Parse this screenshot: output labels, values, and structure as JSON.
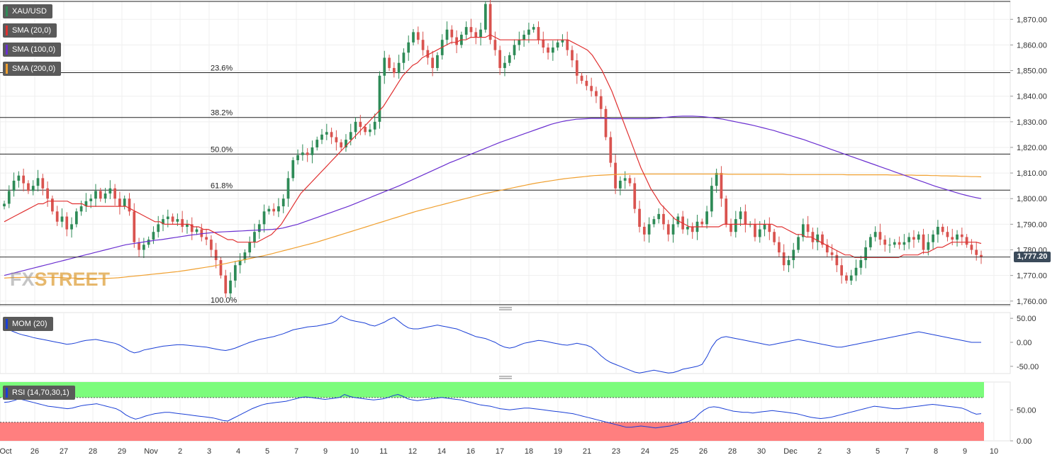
{
  "watermark": {
    "fx": "FX",
    "street": "STREET"
  },
  "legend": {
    "main": [
      {
        "label": "XAU/USD",
        "color": "#2e8b57"
      },
      {
        "label": "SMA (20,0)",
        "color": "#e03030"
      },
      {
        "label": "SMA (100,0)",
        "color": "#6a2fd0"
      },
      {
        "label": "SMA (200,0)",
        "color": "#f0a030"
      }
    ],
    "momentum": {
      "label": "MOM (20)",
      "color": "#1a3fd6"
    },
    "rsi": {
      "label": "RSI (14,70,30,1)",
      "color": "#1a3fd6"
    }
  },
  "last_price": "1,777.20",
  "colors": {
    "up": "#2e8b57",
    "down": "#d9534f",
    "sma20": "#e03030",
    "sma100": "#6a2fd0",
    "sma200": "#f0a030",
    "indicator": "#1a3fd6",
    "overbought": "#7cfc7c",
    "oversold": "#ff7f7f"
  },
  "chart_data": [
    {
      "type": "candlestick",
      "symbol": "XAU/USD",
      "ylim": [
        1758,
        1877
      ],
      "y_ticks": [
        1760,
        1770,
        1780,
        1790,
        1800,
        1810,
        1820,
        1830,
        1840,
        1850,
        1860,
        1870
      ],
      "y_tick_labels": [
        "1,760.00",
        "1,770.00",
        "1,780.00",
        "1,790.00",
        "1,800.00",
        "1,810.00",
        "1,820.00",
        "1,830.00",
        "1,840.00",
        "1,850.00",
        "1,860.00",
        "1,870.00"
      ],
      "x_labels": [
        "Oct",
        "26",
        "27",
        "28",
        "29",
        "Nov",
        "2",
        "3",
        "4",
        "5",
        "7",
        "9",
        "10",
        "11",
        "12",
        "14",
        "16",
        "17",
        "18",
        "19",
        "21",
        "23",
        "24",
        "25",
        "26",
        "28",
        "30",
        "Dec",
        "2",
        "3",
        "5",
        "7",
        "8",
        "9",
        "10"
      ],
      "fibonacci": [
        {
          "label": "",
          "value": 1877
        },
        {
          "label": "23.6%",
          "value": 1849.2
        },
        {
          "label": "38.2%",
          "value": 1831.7
        },
        {
          "label": "50.0%",
          "value": 1817.4
        },
        {
          "label": "61.8%",
          "value": 1803.3
        },
        {
          "label": "100.0%",
          "value": 1758.6
        }
      ],
      "last_price": 1777.2,
      "closes": [
        1798,
        1803,
        1807,
        1809,
        1806,
        1803,
        1805,
        1808,
        1804,
        1800,
        1795,
        1791,
        1793,
        1788,
        1790,
        1795,
        1797,
        1799,
        1800,
        1803,
        1800,
        1802,
        1804,
        1800,
        1797,
        1800,
        1795,
        1783,
        1780,
        1782,
        1784,
        1787,
        1790,
        1792,
        1793,
        1791,
        1792,
        1789,
        1790,
        1787,
        1788,
        1785,
        1784,
        1780,
        1776,
        1770,
        1763,
        1768,
        1774,
        1776,
        1779,
        1783,
        1787,
        1790,
        1795,
        1796,
        1795,
        1797,
        1800,
        1808,
        1815,
        1817,
        1818,
        1817,
        1820,
        1823,
        1825,
        1826,
        1824,
        1822,
        1820,
        1823,
        1826,
        1830,
        1828,
        1826,
        1827,
        1830,
        1848,
        1855,
        1851,
        1849,
        1853,
        1857,
        1861,
        1865,
        1862,
        1858,
        1855,
        1851,
        1856,
        1862,
        1866,
        1863,
        1860,
        1864,
        1867,
        1865,
        1863,
        1866,
        1876,
        1862,
        1858,
        1851,
        1853,
        1856,
        1860,
        1862,
        1864,
        1866,
        1867,
        1862,
        1859,
        1857,
        1859,
        1861,
        1862,
        1858,
        1854,
        1848,
        1846,
        1844,
        1842,
        1840,
        1835,
        1824,
        1814,
        1804,
        1807,
        1808,
        1806,
        1796,
        1789,
        1786,
        1790,
        1792,
        1794,
        1790,
        1786,
        1790,
        1793,
        1788,
        1789,
        1787,
        1791,
        1790,
        1795,
        1805,
        1810,
        1800,
        1790,
        1787,
        1792,
        1795,
        1790,
        1790,
        1785,
        1788,
        1790,
        1787,
        1783,
        1779,
        1774,
        1776,
        1780,
        1785,
        1790,
        1787,
        1783,
        1786,
        1782,
        1779,
        1778,
        1774,
        1770,
        1768,
        1770,
        1773,
        1776,
        1781,
        1785,
        1787,
        1784,
        1782,
        1782,
        1783,
        1782,
        1783,
        1785,
        1784,
        1786,
        1780,
        1783,
        1786,
        1789,
        1787,
        1785,
        1784,
        1786,
        1785,
        1782,
        1780,
        1778,
        1777.2
      ],
      "sma20": [
        1791,
        1792,
        1793,
        1794,
        1795,
        1796,
        1797,
        1798,
        1798,
        1799,
        1799,
        1799,
        1799,
        1799,
        1798,
        1798,
        1798,
        1797,
        1797,
        1797,
        1797,
        1797,
        1797,
        1797,
        1797,
        1797,
        1796,
        1795,
        1794,
        1793,
        1792,
        1791,
        1791,
        1790,
        1790,
        1790,
        1790,
        1790,
        1790,
        1789,
        1789,
        1788,
        1788,
        1787,
        1786,
        1785,
        1784,
        1784,
        1783,
        1783,
        1783,
        1783,
        1783,
        1784,
        1785,
        1786,
        1788,
        1790,
        1793,
        1796,
        1799,
        1802,
        1804,
        1806,
        1808,
        1810,
        1812,
        1814,
        1816,
        1818,
        1820,
        1822,
        1824,
        1826,
        1828,
        1830,
        1832,
        1834,
        1836,
        1839,
        1842,
        1845,
        1848,
        1850,
        1852,
        1853,
        1855,
        1856,
        1857,
        1858,
        1859,
        1860,
        1861,
        1861,
        1862,
        1862,
        1863,
        1863,
        1863,
        1863,
        1864,
        1863,
        1862,
        1862,
        1862,
        1862,
        1862,
        1862,
        1862,
        1862,
        1862,
        1862,
        1862,
        1862,
        1862,
        1862,
        1862,
        1861,
        1860,
        1859,
        1858,
        1856,
        1853,
        1850,
        1846,
        1842,
        1837,
        1832,
        1827,
        1822,
        1817,
        1812,
        1808,
        1804,
        1801,
        1798,
        1796,
        1794,
        1792,
        1791,
        1790,
        1789,
        1789,
        1789,
        1789,
        1789,
        1789,
        1789,
        1790,
        1790,
        1790,
        1790,
        1790,
        1790,
        1790,
        1790,
        1790,
        1790,
        1790,
        1789,
        1789,
        1788,
        1787,
        1786,
        1786,
        1785,
        1785,
        1784,
        1783,
        1782,
        1781,
        1780,
        1779,
        1778,
        1778,
        1777,
        1777,
        1777,
        1777,
        1777,
        1777,
        1777,
        1777,
        1777,
        1777,
        1778,
        1778,
        1778,
        1778,
        1779,
        1779,
        1780,
        1781,
        1781,
        1782,
        1783,
        1783,
        1783,
        1783,
        1783,
        1783,
        1782.5
      ],
      "sma100": [
        1770,
        1770.5,
        1771,
        1771.5,
        1772,
        1772.5,
        1773,
        1773.5,
        1774,
        1774.5,
        1775,
        1775.5,
        1776,
        1776.5,
        1777,
        1777.5,
        1778,
        1778.5,
        1779,
        1779.5,
        1780,
        1780.5,
        1781,
        1781.5,
        1782,
        1782.3,
        1782.6,
        1782.9,
        1783.2,
        1783.5,
        1783.8,
        1784,
        1784.3,
        1784.6,
        1784.9,
        1785.2,
        1785.5,
        1785.8,
        1786,
        1786.3,
        1786.5,
        1786.7,
        1786.9,
        1787,
        1787.1,
        1787.2,
        1787.3,
        1787.4,
        1787.5,
        1787.6,
        1787.7,
        1787.8,
        1787.9,
        1788,
        1788.2,
        1788.5,
        1789,
        1789.5,
        1790,
        1790.7,
        1791.4,
        1792.1,
        1792.8,
        1793.5,
        1794.2,
        1794.9,
        1795.6,
        1796.3,
        1797,
        1797.8,
        1798.6,
        1799.4,
        1800.2,
        1801,
        1801.8,
        1802.6,
        1803.4,
        1804.2,
        1805,
        1805.9,
        1806.8,
        1807.7,
        1808.6,
        1809.5,
        1810.4,
        1811.3,
        1812.2,
        1813.1,
        1814,
        1814.8,
        1815.6,
        1816.4,
        1817.2,
        1818,
        1818.8,
        1819.6,
        1820.4,
        1821.2,
        1822,
        1822.7,
        1823.4,
        1824.1,
        1824.8,
        1825.5,
        1826.2,
        1826.9,
        1827.6,
        1828.3,
        1829,
        1829.5,
        1830,
        1830.4,
        1830.7,
        1831,
        1831.1,
        1831.2,
        1831.3,
        1831.3,
        1831.3,
        1831.3,
        1831.2,
        1831.2,
        1831.2,
        1831.2,
        1831.2,
        1831.2,
        1831.2,
        1831.2,
        1831.3,
        1831.4,
        1831.6,
        1831.8,
        1832,
        1832.1,
        1832.2,
        1832.2,
        1832.2,
        1832.1,
        1832,
        1831.8,
        1831.6,
        1831.3,
        1831,
        1830.6,
        1830.2,
        1829.8,
        1829.4,
        1829,
        1828.6,
        1828.1,
        1827.6,
        1827.1,
        1826.6,
        1826,
        1825.4,
        1824.8,
        1824.2,
        1823.6,
        1823,
        1822.3,
        1821.6,
        1820.9,
        1820.2,
        1819.5,
        1818.8,
        1818.1,
        1817.4,
        1816.7,
        1816,
        1815.3,
        1814.6,
        1813.9,
        1813.2,
        1812.5,
        1811.8,
        1811.1,
        1810.4,
        1809.7,
        1809,
        1808.3,
        1807.6,
        1806.9,
        1806.2,
        1805.5,
        1804.8,
        1804.2,
        1803.6,
        1803,
        1802.4,
        1801.8,
        1801.3,
        1800.8,
        1800.4,
        1800
      ],
      "sma200": [
        1769,
        1769.1,
        1769.2,
        1769.2,
        1769.3,
        1769.3,
        1769.3,
        1769.3,
        1769.3,
        1769.3,
        1769.2,
        1769.2,
        1769.1,
        1769,
        1769,
        1768.9,
        1768.9,
        1768.8,
        1768.8,
        1768.8,
        1768.8,
        1768.9,
        1769,
        1769.1,
        1769.3,
        1769.5,
        1769.7,
        1769.9,
        1770.1,
        1770.3,
        1770.5,
        1770.7,
        1770.9,
        1771.1,
        1771.3,
        1771.5,
        1771.8,
        1772.1,
        1772.4,
        1772.7,
        1773,
        1773.3,
        1773.6,
        1774,
        1774.4,
        1774.8,
        1775.2,
        1775.6,
        1776,
        1776.4,
        1776.8,
        1777.2,
        1777.6,
        1778,
        1778.5,
        1779,
        1779.5,
        1780,
        1780.5,
        1781,
        1781.5,
        1782,
        1782.5,
        1783,
        1783.6,
        1784.2,
        1784.8,
        1785.4,
        1786,
        1786.6,
        1787.2,
        1787.8,
        1788.4,
        1789,
        1789.6,
        1790.2,
        1790.8,
        1791.4,
        1792,
        1792.6,
        1793.2,
        1793.8,
        1794.4,
        1795,
        1795.5,
        1796,
        1796.5,
        1797,
        1797.5,
        1798,
        1798.5,
        1799,
        1799.5,
        1800,
        1800.5,
        1801,
        1801.5,
        1802,
        1802.4,
        1802.8,
        1803.2,
        1803.6,
        1804,
        1804.4,
        1804.8,
        1805.2,
        1805.6,
        1806,
        1806.3,
        1806.6,
        1806.9,
        1807.2,
        1807.5,
        1807.8,
        1808,
        1808.2,
        1808.4,
        1808.6,
        1808.8,
        1809,
        1809.1,
        1809.2,
        1809.3,
        1809.4,
        1809.5,
        1809.5,
        1809.6,
        1809.6,
        1809.6,
        1809.6,
        1809.6,
        1809.6,
        1809.6,
        1809.6,
        1809.6,
        1809.6,
        1809.6,
        1809.6,
        1809.6,
        1809.6,
        1809.6,
        1809.6,
        1809.6,
        1809.6,
        1809.6,
        1809.6,
        1809.5,
        1809.5,
        1809.5,
        1809.5,
        1809.5,
        1809.5,
        1809.5,
        1809.5,
        1809.5,
        1809.5,
        1809.5,
        1809.5,
        1809.4,
        1809.4,
        1809.4,
        1809.4,
        1809.4,
        1809.4,
        1809.4,
        1809.4,
        1809.4,
        1809.4,
        1809.4,
        1809.4,
        1809.3,
        1809.3,
        1809.3,
        1809.3,
        1809.3,
        1809.3,
        1809.3,
        1809.3,
        1809.3,
        1809.2,
        1809.2,
        1809.2,
        1809.2,
        1809.2,
        1809.1,
        1809.1,
        1809.1,
        1809,
        1809,
        1808.9,
        1808.9,
        1808.8,
        1808.8,
        1808.7,
        1808.7,
        1808.6,
        1808.6,
        1808.5
      ]
    },
    {
      "type": "line",
      "name": "MOM (20)",
      "ylim": [
        -65,
        62
      ],
      "y_ticks": [
        50,
        0,
        -50
      ],
      "y_tick_labels": [
        "50.00",
        "0.00",
        "-50.00"
      ],
      "values": [
        28,
        26,
        22,
        18,
        15,
        13,
        10,
        8,
        6,
        4,
        2,
        0,
        -2,
        -4,
        -3,
        -1,
        2,
        4,
        5,
        6,
        4,
        2,
        0,
        -2,
        -6,
        -12,
        -18,
        -22,
        -20,
        -16,
        -14,
        -12,
        -10,
        -8,
        -7,
        -6,
        -5,
        -5,
        -6,
        -7,
        -8,
        -9,
        -10,
        -12,
        -14,
        -16,
        -17,
        -15,
        -12,
        -8,
        -4,
        0,
        3,
        6,
        8,
        10,
        12,
        15,
        18,
        22,
        26,
        28,
        30,
        32,
        33,
        34,
        36,
        38,
        40,
        45,
        55,
        50,
        46,
        44,
        42,
        40,
        36,
        34,
        38,
        42,
        48,
        52,
        44,
        36,
        30,
        28,
        28,
        30,
        32,
        34,
        36,
        34,
        32,
        30,
        28,
        24,
        20,
        16,
        12,
        10,
        8,
        4,
        0,
        -6,
        -10,
        -12,
        -10,
        -6,
        -2,
        0,
        2,
        4,
        3,
        1,
        -1,
        -3,
        -5,
        -6,
        -4,
        -2,
        -4,
        -6,
        -10,
        -18,
        -28,
        -36,
        -42,
        -46,
        -50,
        -54,
        -58,
        -62,
        -64,
        -62,
        -60,
        -58,
        -60,
        -62,
        -64,
        -63,
        -60,
        -56,
        -54,
        -52,
        -50,
        -46,
        -30,
        -10,
        4,
        10,
        12,
        10,
        8,
        6,
        4,
        2,
        0,
        -2,
        -4,
        -6,
        -4,
        -2,
        0,
        2,
        4,
        6,
        4,
        2,
        0,
        -2,
        -4,
        -6,
        -8,
        -10,
        -10,
        -8,
        -6,
        -4,
        -2,
        0,
        2,
        4,
        6,
        8,
        10,
        12,
        14,
        16,
        18,
        20,
        22,
        20,
        18,
        16,
        14,
        12,
        10,
        8,
        6,
        4,
        2,
        0,
        0,
        0
      ]
    },
    {
      "type": "line",
      "name": "RSI (14,70,30,1)",
      "ylim": [
        0,
        95
      ],
      "levels": [
        70,
        30
      ],
      "y_ticks": [
        50,
        0
      ],
      "y_tick_labels": [
        "50.00",
        "0.00"
      ],
      "values": [
        62,
        63,
        65,
        68,
        66,
        64,
        62,
        60,
        58,
        56,
        55,
        54,
        53,
        52,
        53,
        55,
        57,
        58,
        59,
        60,
        58,
        56,
        54,
        52,
        48,
        42,
        38,
        35,
        37,
        40,
        42,
        44,
        45,
        46,
        46,
        45,
        44,
        43,
        42,
        41,
        40,
        39,
        38,
        37,
        35,
        33,
        32,
        36,
        40,
        44,
        48,
        52,
        55,
        58,
        60,
        61,
        62,
        63,
        64,
        66,
        68,
        70,
        71,
        70,
        69,
        68,
        67,
        68,
        69,
        70,
        75,
        72,
        70,
        69,
        68,
        67,
        66,
        67,
        68,
        70,
        73,
        75,
        72,
        68,
        66,
        65,
        66,
        67,
        68,
        69,
        70,
        69,
        68,
        67,
        66,
        64,
        62,
        60,
        58,
        57,
        56,
        54,
        52,
        51,
        50,
        51,
        52,
        53,
        53,
        52,
        51,
        50,
        49,
        48,
        47,
        46,
        45,
        44,
        42,
        40,
        38,
        36,
        34,
        32,
        30,
        28,
        26,
        24,
        22,
        22,
        23,
        24,
        23,
        22,
        21,
        22,
        23,
        24,
        26,
        28,
        30,
        32,
        36,
        44,
        50,
        54,
        55,
        54,
        52,
        50,
        48,
        47,
        46,
        46,
        45,
        46,
        47,
        48,
        49,
        48,
        47,
        46,
        45,
        44,
        42,
        40,
        38,
        37,
        36,
        37,
        38,
        40,
        42,
        44,
        46,
        48,
        50,
        52,
        54,
        56,
        55,
        54,
        53,
        52,
        52,
        53,
        54,
        55,
        56,
        57,
        58,
        59,
        58,
        57,
        56,
        55,
        54,
        53,
        50,
        46,
        43,
        44
      ]
    }
  ]
}
